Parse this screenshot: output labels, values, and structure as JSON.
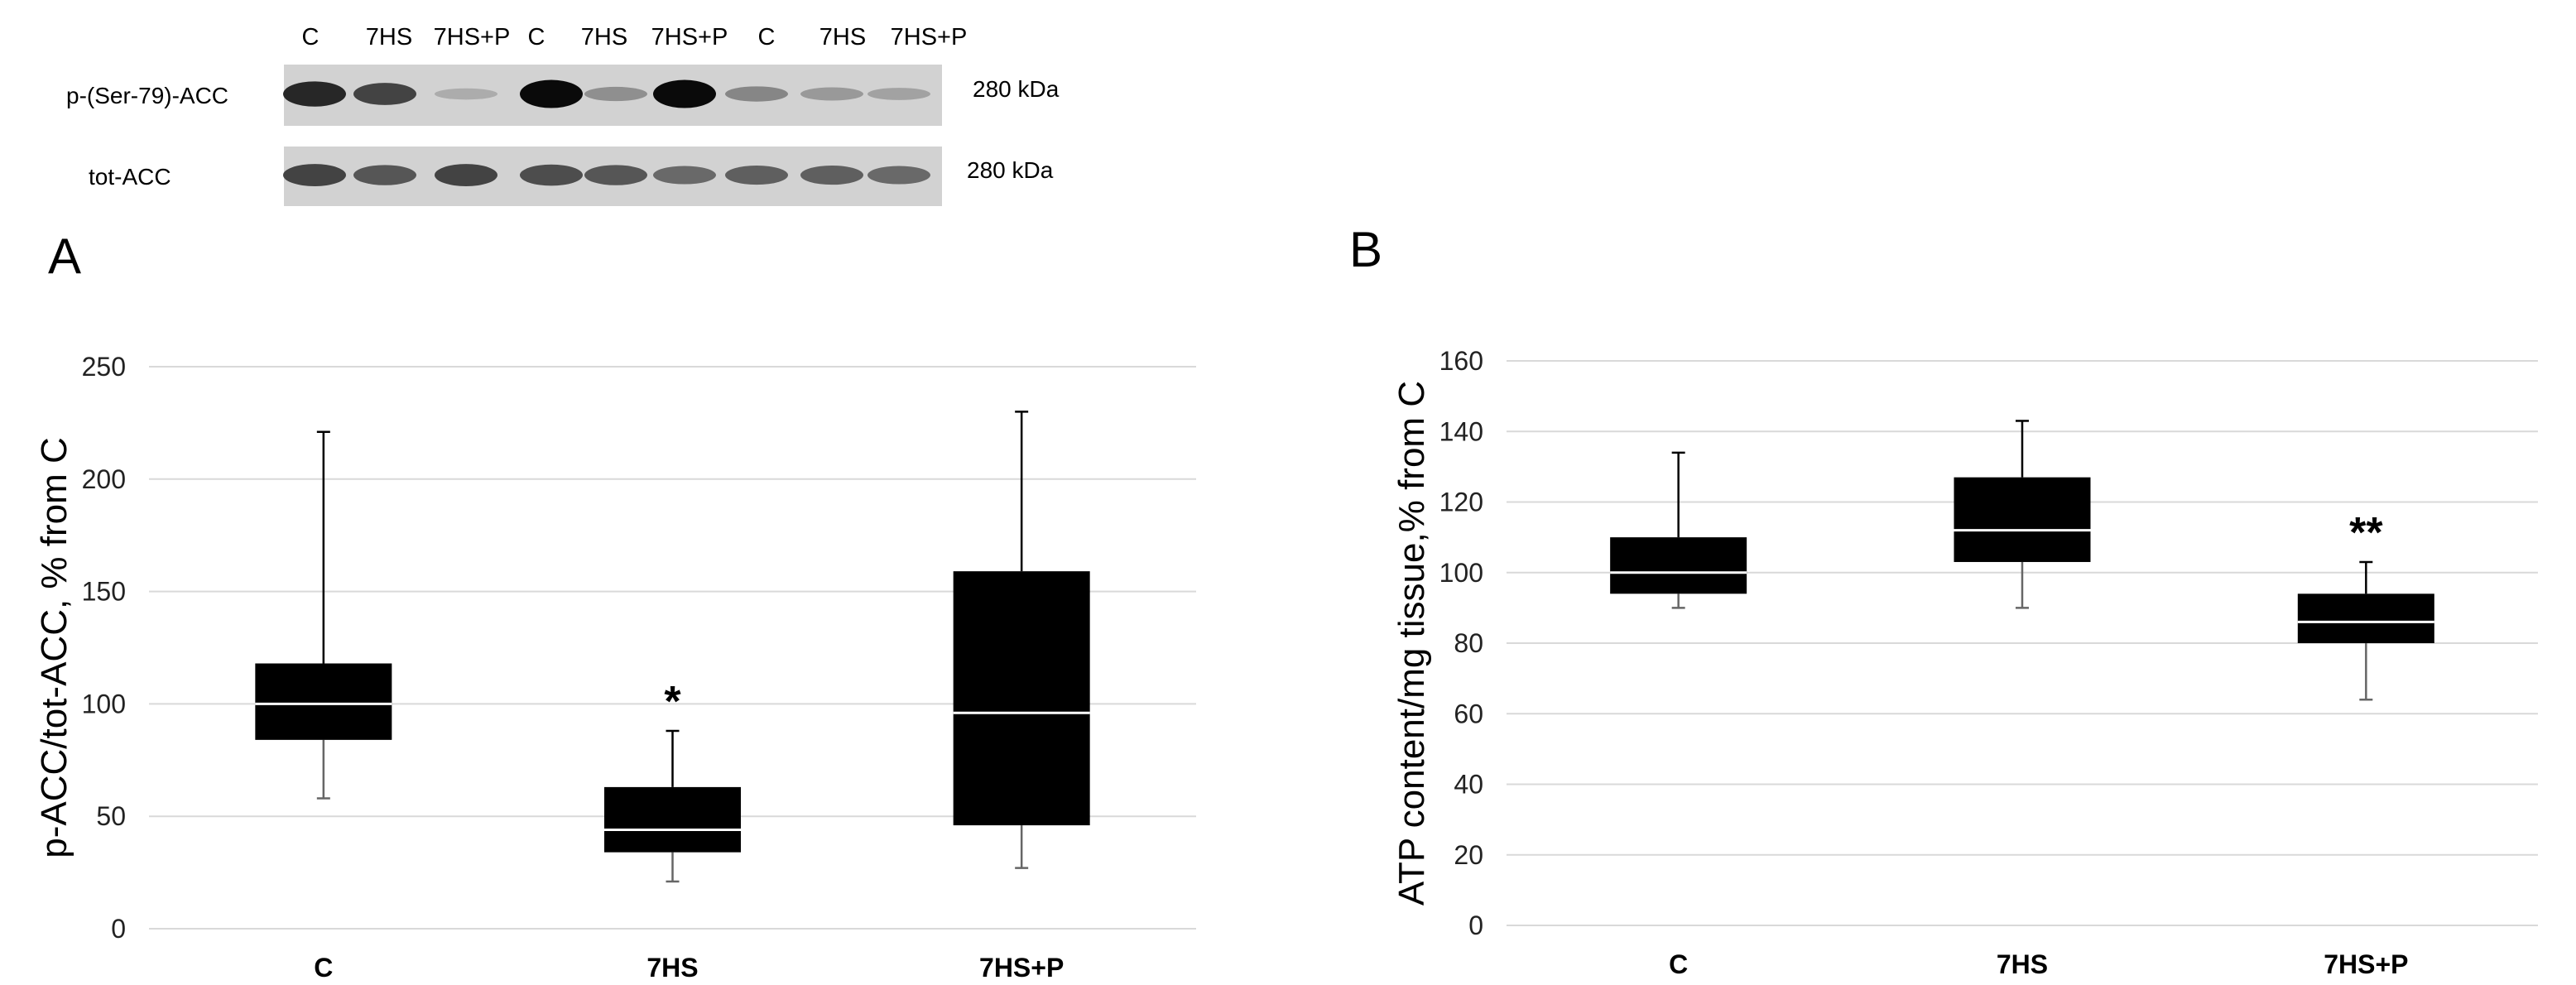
{
  "blot": {
    "lane_labels": [
      "C",
      "7HS",
      "7HS+P",
      "C",
      "7HS",
      "7HS+P",
      "C",
      "7HS",
      "7HS+P"
    ],
    "rows": [
      {
        "label": "p-(Ser-79)-ACC",
        "weight": "280 kDa",
        "band_intensity": [
          0.85,
          0.7,
          0.15,
          1.0,
          0.3,
          1.0,
          0.35,
          0.25,
          0.2
        ]
      },
      {
        "label": "tot-ACC",
        "weight": "280 kDa",
        "band_intensity": [
          0.7,
          0.6,
          0.7,
          0.65,
          0.6,
          0.5,
          0.55,
          0.55,
          0.5
        ]
      }
    ]
  },
  "chart_data": [
    {
      "type": "boxplot",
      "panel_label": "A",
      "ylabel": "p-ACC/tot-ACC, % from C",
      "xlabel": "",
      "ylim": [
        0,
        250
      ],
      "yticks": [
        0,
        50,
        100,
        150,
        200,
        250
      ],
      "grid": true,
      "categories": [
        "C",
        "7HS",
        "7HS+P"
      ],
      "boxes": [
        {
          "min": 58,
          "q1": 84,
          "median": 100,
          "q3": 118,
          "max": 221
        },
        {
          "min": 21,
          "q1": 34,
          "median": 44,
          "q3": 63,
          "max": 88
        },
        {
          "min": 27,
          "q1": 46,
          "median": 96,
          "q3": 159,
          "max": 230
        }
      ],
      "annotations": [
        "",
        "*",
        ""
      ]
    },
    {
      "type": "boxplot",
      "panel_label": "B",
      "ylabel": "ATP content/mg tissue,% from C",
      "xlabel": "",
      "ylim": [
        0,
        160
      ],
      "yticks": [
        0,
        20,
        40,
        60,
        80,
        100,
        120,
        140,
        160
      ],
      "grid": true,
      "categories": [
        "C",
        "7HS",
        "7HS+P"
      ],
      "boxes": [
        {
          "min": 90,
          "q1": 94,
          "median": 100,
          "q3": 110,
          "max": 134
        },
        {
          "min": 90,
          "q1": 103,
          "median": 112,
          "q3": 127,
          "max": 143
        },
        {
          "min": 64,
          "q1": 80,
          "median": 86,
          "q3": 94,
          "max": 103
        }
      ],
      "annotations": [
        "",
        "",
        "**"
      ]
    }
  ]
}
